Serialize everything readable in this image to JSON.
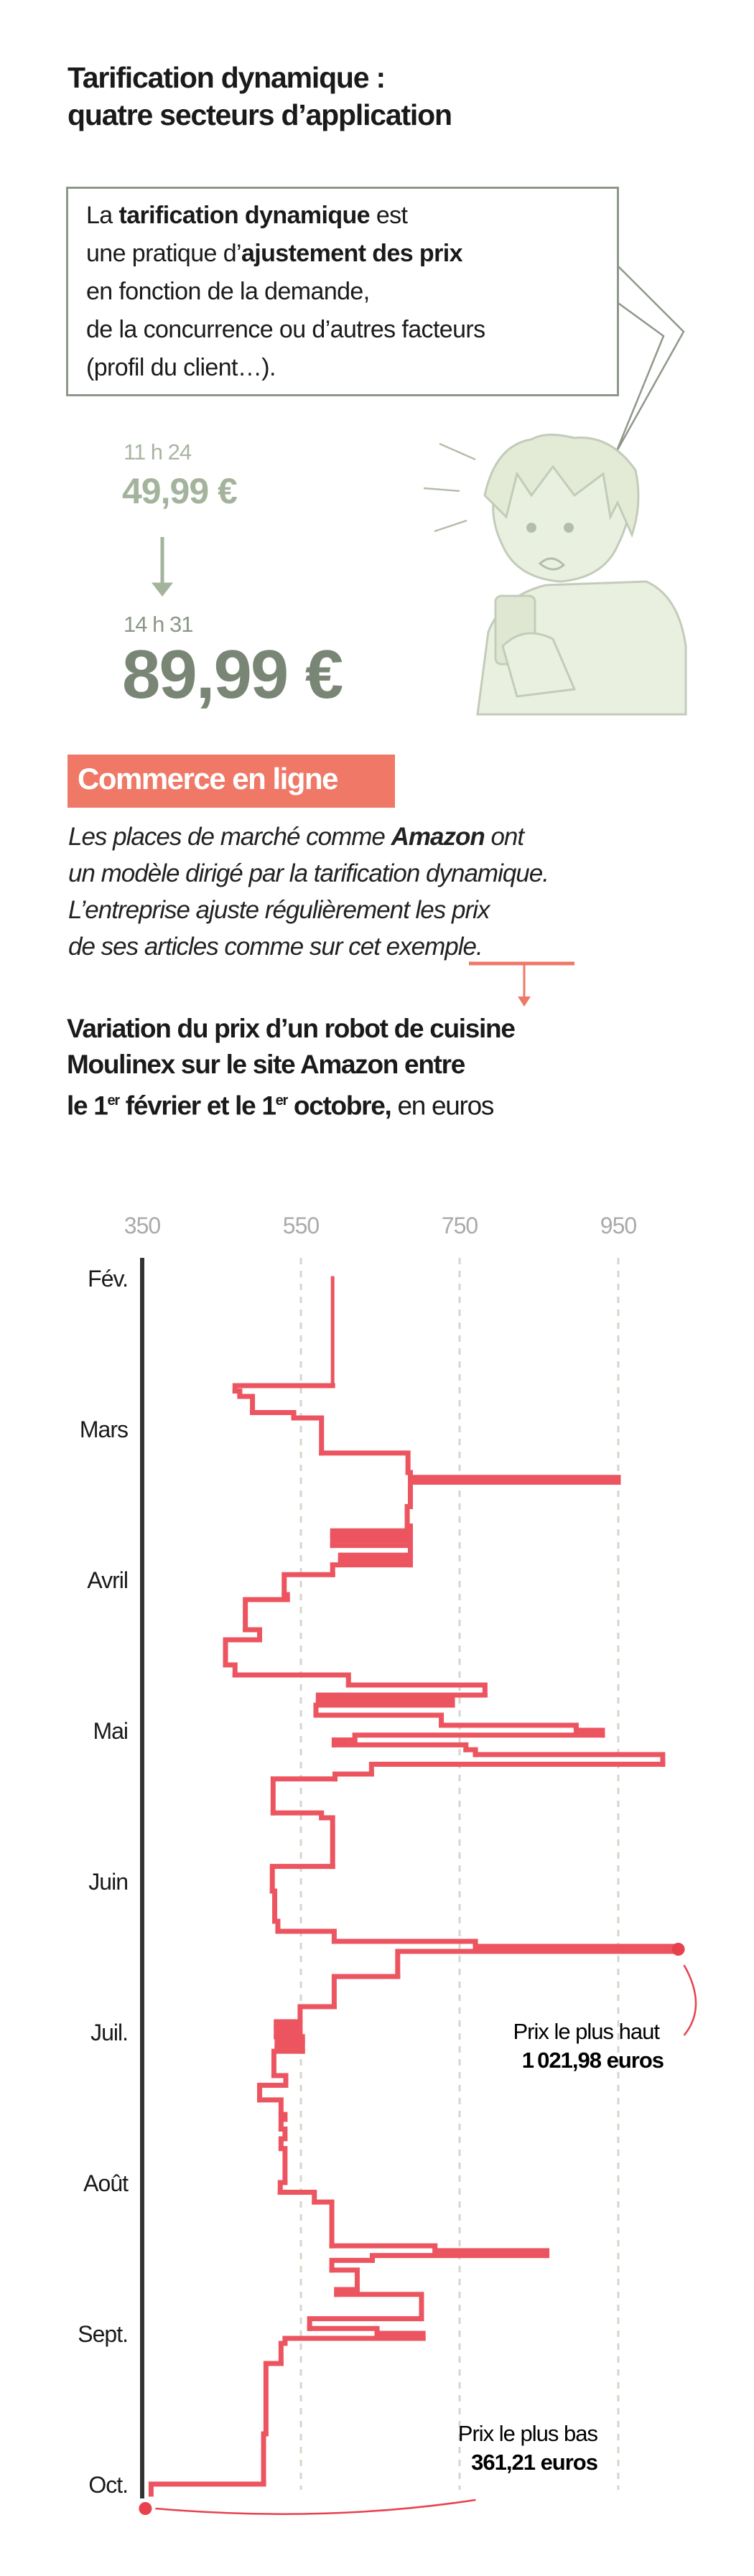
{
  "header": {
    "title_line1": "Tarification dynamique :",
    "title_line2": "quatre secteurs d’application"
  },
  "definition": {
    "l1_a": "La ",
    "l1_b": "tarification dynamique",
    "l1_c": " est",
    "l2_a": "une pratique d’",
    "l2_b": "ajustement des prix",
    "l3": "en fonction de la demande,",
    "l4": "de la concurrence ou d’autres facteurs",
    "l5": "(profil du client…)."
  },
  "price_example": {
    "time_before": "11 h 24",
    "price_before": "49,99 €",
    "time_after": "14 h 31",
    "price_after": "89,99 €",
    "icon": "arrow-down-icon"
  },
  "section": {
    "badge": "Commerce en ligne",
    "badge_color": "#ef7867",
    "intro_l1_a": "Les places de marché comme ",
    "intro_l1_b": "Amazon",
    "intro_l1_c": " ont",
    "intro_l2": "un modèle dirigé par la tarification dynamique.",
    "intro_l3": "L’entreprise ajuste régulièrement les prix",
    "intro_l4_a": "de ses articles comme sur cet ",
    "intro_l4_b": "exemple",
    "intro_l4_c": "."
  },
  "chart_data": {
    "type": "line",
    "step": true,
    "orientation": "vertical-time",
    "title_l1": "Variation du prix d’un robot de cuisine",
    "title_l2": "Moulinex sur le site Amazon entre",
    "title_l3_a": "le 1",
    "title_l3_sup1": "er",
    "title_l3_b": " février et le 1",
    "title_l3_sup2": "er",
    "title_l3_c": " octobre,",
    "title_l3_unit": " en euros",
    "x_ticks": [
      "350",
      "550",
      "750",
      "950"
    ],
    "xlim": [
      350,
      1022
    ],
    "grid": true,
    "months": [
      "Fév.",
      "Mars",
      "Avril",
      "Mai",
      "Juin",
      "Juil.",
      "Août",
      "Sept.",
      "Oct."
    ],
    "line_color": "#ec5560",
    "series": [
      {
        "points": [
          [
            "02-01",
            590
          ],
          [
            "02-21",
            467
          ],
          [
            "02-22",
            473
          ],
          [
            "02-23",
            489
          ],
          [
            "02-26",
            541
          ],
          [
            "02-27",
            576
          ],
          [
            "03-06",
            685
          ],
          [
            "03-10",
            688
          ],
          [
            "03-11",
            950
          ],
          [
            "03-12",
            688
          ],
          [
            "03-17",
            684
          ],
          [
            "03-21",
            688
          ],
          [
            "03-22",
            590
          ],
          [
            "03-23",
            688
          ],
          [
            "03-24",
            590
          ],
          [
            "03-25",
            688
          ],
          [
            "03-27",
            600
          ],
          [
            "03-28",
            688
          ],
          [
            "03-29",
            590
          ],
          [
            "03-31",
            529
          ],
          [
            "04-04",
            533
          ],
          [
            "04-05",
            480
          ],
          [
            "04-11",
            498
          ],
          [
            "04-13",
            455
          ],
          [
            "04-18",
            467
          ],
          [
            "04-20",
            610
          ],
          [
            "04-22",
            782
          ],
          [
            "04-24",
            572
          ],
          [
            "04-25",
            741
          ],
          [
            "04-26",
            569
          ],
          [
            "04-28",
            727
          ],
          [
            "04-30",
            897
          ],
          [
            "05-01",
            930
          ],
          [
            "05-02",
            618
          ],
          [
            "05-03",
            592
          ],
          [
            "05-04",
            758
          ],
          [
            "05-05",
            770
          ],
          [
            "05-06",
            1006
          ],
          [
            "05-08",
            639
          ],
          [
            "05-10",
            593
          ],
          [
            "05-11",
            515
          ],
          [
            "05-18",
            576
          ],
          [
            "05-19",
            590
          ],
          [
            "05-29",
            514
          ],
          [
            "06-03",
            517
          ],
          [
            "06-09",
            521
          ],
          [
            "06-11",
            592
          ],
          [
            "06-13",
            770
          ],
          [
            "06-14",
            1021.98
          ],
          [
            "06-15",
            672
          ],
          [
            "06-20",
            592
          ],
          [
            "06-26",
            549
          ],
          [
            "06-29",
            519
          ],
          [
            "06-30",
            549
          ],
          [
            "07-01",
            519
          ],
          [
            "07-02",
            552
          ],
          [
            "07-03",
            520
          ],
          [
            "07-04",
            552
          ],
          [
            "07-05",
            516
          ],
          [
            "07-10",
            531
          ],
          [
            "07-12",
            498
          ],
          [
            "07-15",
            525
          ],
          [
            "07-18",
            530
          ],
          [
            "07-19",
            525
          ],
          [
            "07-21",
            530
          ],
          [
            "07-23",
            525
          ],
          [
            "07-25",
            530
          ],
          [
            "08-01",
            524
          ],
          [
            "08-03",
            567
          ],
          [
            "08-05",
            589
          ],
          [
            "08-14",
            719
          ],
          [
            "08-15",
            860
          ],
          [
            "08-16",
            640
          ],
          [
            "08-17",
            589
          ],
          [
            "08-19",
            621
          ],
          [
            "08-23",
            595
          ],
          [
            "08-24",
            702
          ],
          [
            "08-29",
            561
          ],
          [
            "08-31",
            646
          ],
          [
            "09-01",
            704
          ],
          [
            "09-02",
            530
          ],
          [
            "09-03",
            525
          ],
          [
            "09-07",
            506
          ],
          [
            "09-21",
            503
          ],
          [
            "10-01",
            361.21
          ]
        ]
      }
    ],
    "annotations": {
      "max_label": "Prix le plus haut",
      "max_value": "1 021,98 euros",
      "min_label": "Prix le plus bas",
      "min_value": "361,21 euros"
    }
  }
}
